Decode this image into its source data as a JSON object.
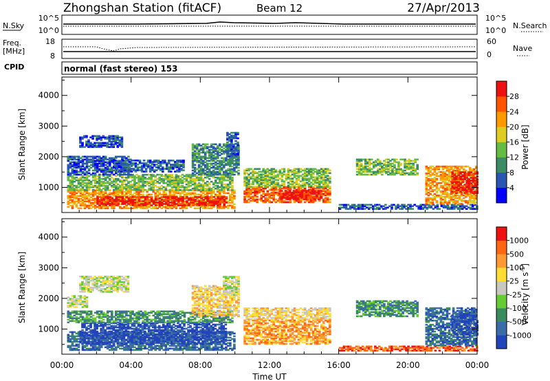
{
  "header": {
    "station_title": "Zhongshan Station (fitACF)",
    "beam": "Beam 12",
    "date": "27/Apr/2013"
  },
  "top_panels": {
    "nsky_label": "N.Sky",
    "nsearch_label": "N.Search",
    "nsky_ticks": [
      "10^5",
      "10^0"
    ],
    "nsearch_ticks": [
      "10^5",
      "10^0"
    ],
    "freq_label_top": "Freq.",
    "freq_label_unit": "[MHz]",
    "freq_ticks": [
      "18",
      "8"
    ],
    "nave_label": "Nave",
    "nave_ticks": [
      "60",
      "0"
    ],
    "cpid_label": "CPID",
    "cpid_text": "normal (fast stereo) 153"
  },
  "colors": {
    "power_scale": [
      "#0000ff",
      "#2a55b3",
      "#3b8c66",
      "#66bb44",
      "#ddcc22",
      "#ff9900",
      "#ff5500",
      "#ee1111"
    ],
    "velocity_scale": [
      "#2244bb",
      "#3b6ba8",
      "#3a8a5c",
      "#66cc33",
      "#c8c8c0",
      "#ffdd33",
      "#ff9933",
      "#ff6611",
      "#ee1111"
    ]
  },
  "chart_data": [
    {
      "type": "heatmap",
      "name": "power",
      "ylabel": "Slant Range [km]",
      "y_ticks": [
        1000,
        2000,
        3000,
        4000
      ],
      "ylim": [
        180,
        4600
      ],
      "x_ticks": [
        "00:00",
        "04:00",
        "08:00",
        "12:00",
        "16:00",
        "20:00",
        "00:00"
      ],
      "xlim_hours": [
        0,
        24
      ],
      "colorbar_label": "Power [dB]",
      "colorbar_ticks": [
        4,
        8,
        12,
        16,
        20,
        24,
        28
      ],
      "colorbar_range": [
        0,
        32
      ],
      "regions": [
        {
          "t0": 0.3,
          "t1": 10.0,
          "r0": 300,
          "r1": 900,
          "level": 5
        },
        {
          "t0": 2.0,
          "t1": 9.5,
          "r0": 400,
          "r1": 700,
          "level": 7
        },
        {
          "t0": 0.3,
          "t1": 9.8,
          "r0": 900,
          "r1": 1400,
          "level": 3
        },
        {
          "t0": 0.3,
          "t1": 4.0,
          "r0": 1400,
          "r1": 2000,
          "level": 1
        },
        {
          "t0": 1.0,
          "t1": 3.5,
          "r0": 2300,
          "r1": 2700,
          "level": 1
        },
        {
          "t0": 3.0,
          "t1": 7.0,
          "r0": 1500,
          "r1": 1900,
          "level": 1
        },
        {
          "t0": 7.5,
          "t1": 10.2,
          "r0": 1400,
          "r1": 2400,
          "level": 2
        },
        {
          "t0": 9.5,
          "t1": 10.2,
          "r0": 2000,
          "r1": 2800,
          "level": 1
        },
        {
          "t0": 10.5,
          "t1": 15.5,
          "r0": 500,
          "r1": 1000,
          "level": 6
        },
        {
          "t0": 12.5,
          "t1": 15.0,
          "r0": 600,
          "r1": 900,
          "level": 7
        },
        {
          "t0": 10.5,
          "t1": 15.5,
          "r0": 1000,
          "r1": 1600,
          "level": 3
        },
        {
          "t0": 16.0,
          "t1": 24.0,
          "r0": 280,
          "r1": 450,
          "level": 1
        },
        {
          "t0": 17.0,
          "t1": 20.5,
          "r0": 1400,
          "r1": 1900,
          "level": 3
        },
        {
          "t0": 21.0,
          "t1": 24.0,
          "r0": 450,
          "r1": 1700,
          "level": 5
        },
        {
          "t0": 22.5,
          "t1": 24.0,
          "r0": 800,
          "r1": 1500,
          "level": 7
        }
      ]
    },
    {
      "type": "heatmap",
      "name": "velocity",
      "ylabel": "Slant Range [km]",
      "y_ticks": [
        1000,
        2000,
        3000,
        4000
      ],
      "ylim": [
        180,
        4600
      ],
      "x_ticks": [
        "00:00",
        "04:00",
        "08:00",
        "12:00",
        "16:00",
        "20:00",
        "00:00"
      ],
      "xlim_hours": [
        0,
        24
      ],
      "xlabel": "Time UT",
      "colorbar_label": "Velocity [m s",
      "colorbar_label_sup": "-1",
      "colorbar_label_end": "]",
      "colorbar_ticks": [
        "1000",
        "500",
        "100",
        "25",
        "-25",
        "-100",
        "-500",
        "-1000"
      ],
      "regions": [
        {
          "t0": 0.3,
          "t1": 10.0,
          "r0": 300,
          "r1": 900,
          "level": 1
        },
        {
          "t0": 1.0,
          "t1": 9.5,
          "r0": 500,
          "r1": 1200,
          "level": 0
        },
        {
          "t0": 0.3,
          "t1": 9.8,
          "r0": 1200,
          "r1": 1600,
          "level": 2
        },
        {
          "t0": 1.0,
          "t1": 3.8,
          "r0": 2200,
          "r1": 2700,
          "level": 4
        },
        {
          "t0": 0.3,
          "t1": 1.5,
          "r0": 1700,
          "r1": 2100,
          "level": 4
        },
        {
          "t0": 7.5,
          "t1": 10.2,
          "r0": 1400,
          "r1": 2400,
          "level": 5
        },
        {
          "t0": 9.3,
          "t1": 10.2,
          "r0": 2100,
          "r1": 2700,
          "level": 4
        },
        {
          "t0": 10.5,
          "t1": 15.5,
          "r0": 500,
          "r1": 1300,
          "level": 6
        },
        {
          "t0": 10.5,
          "t1": 15.5,
          "r0": 1300,
          "r1": 1700,
          "level": 5
        },
        {
          "t0": 16.0,
          "t1": 24.0,
          "r0": 280,
          "r1": 450,
          "level": 7
        },
        {
          "t0": 17.0,
          "t1": 20.5,
          "r0": 1400,
          "r1": 1900,
          "level": 2
        },
        {
          "t0": 21.0,
          "t1": 24.0,
          "r0": 450,
          "r1": 1700,
          "level": 1
        },
        {
          "t0": 22.5,
          "t1": 24.0,
          "r0": 800,
          "r1": 1500,
          "level": 0
        }
      ]
    }
  ]
}
